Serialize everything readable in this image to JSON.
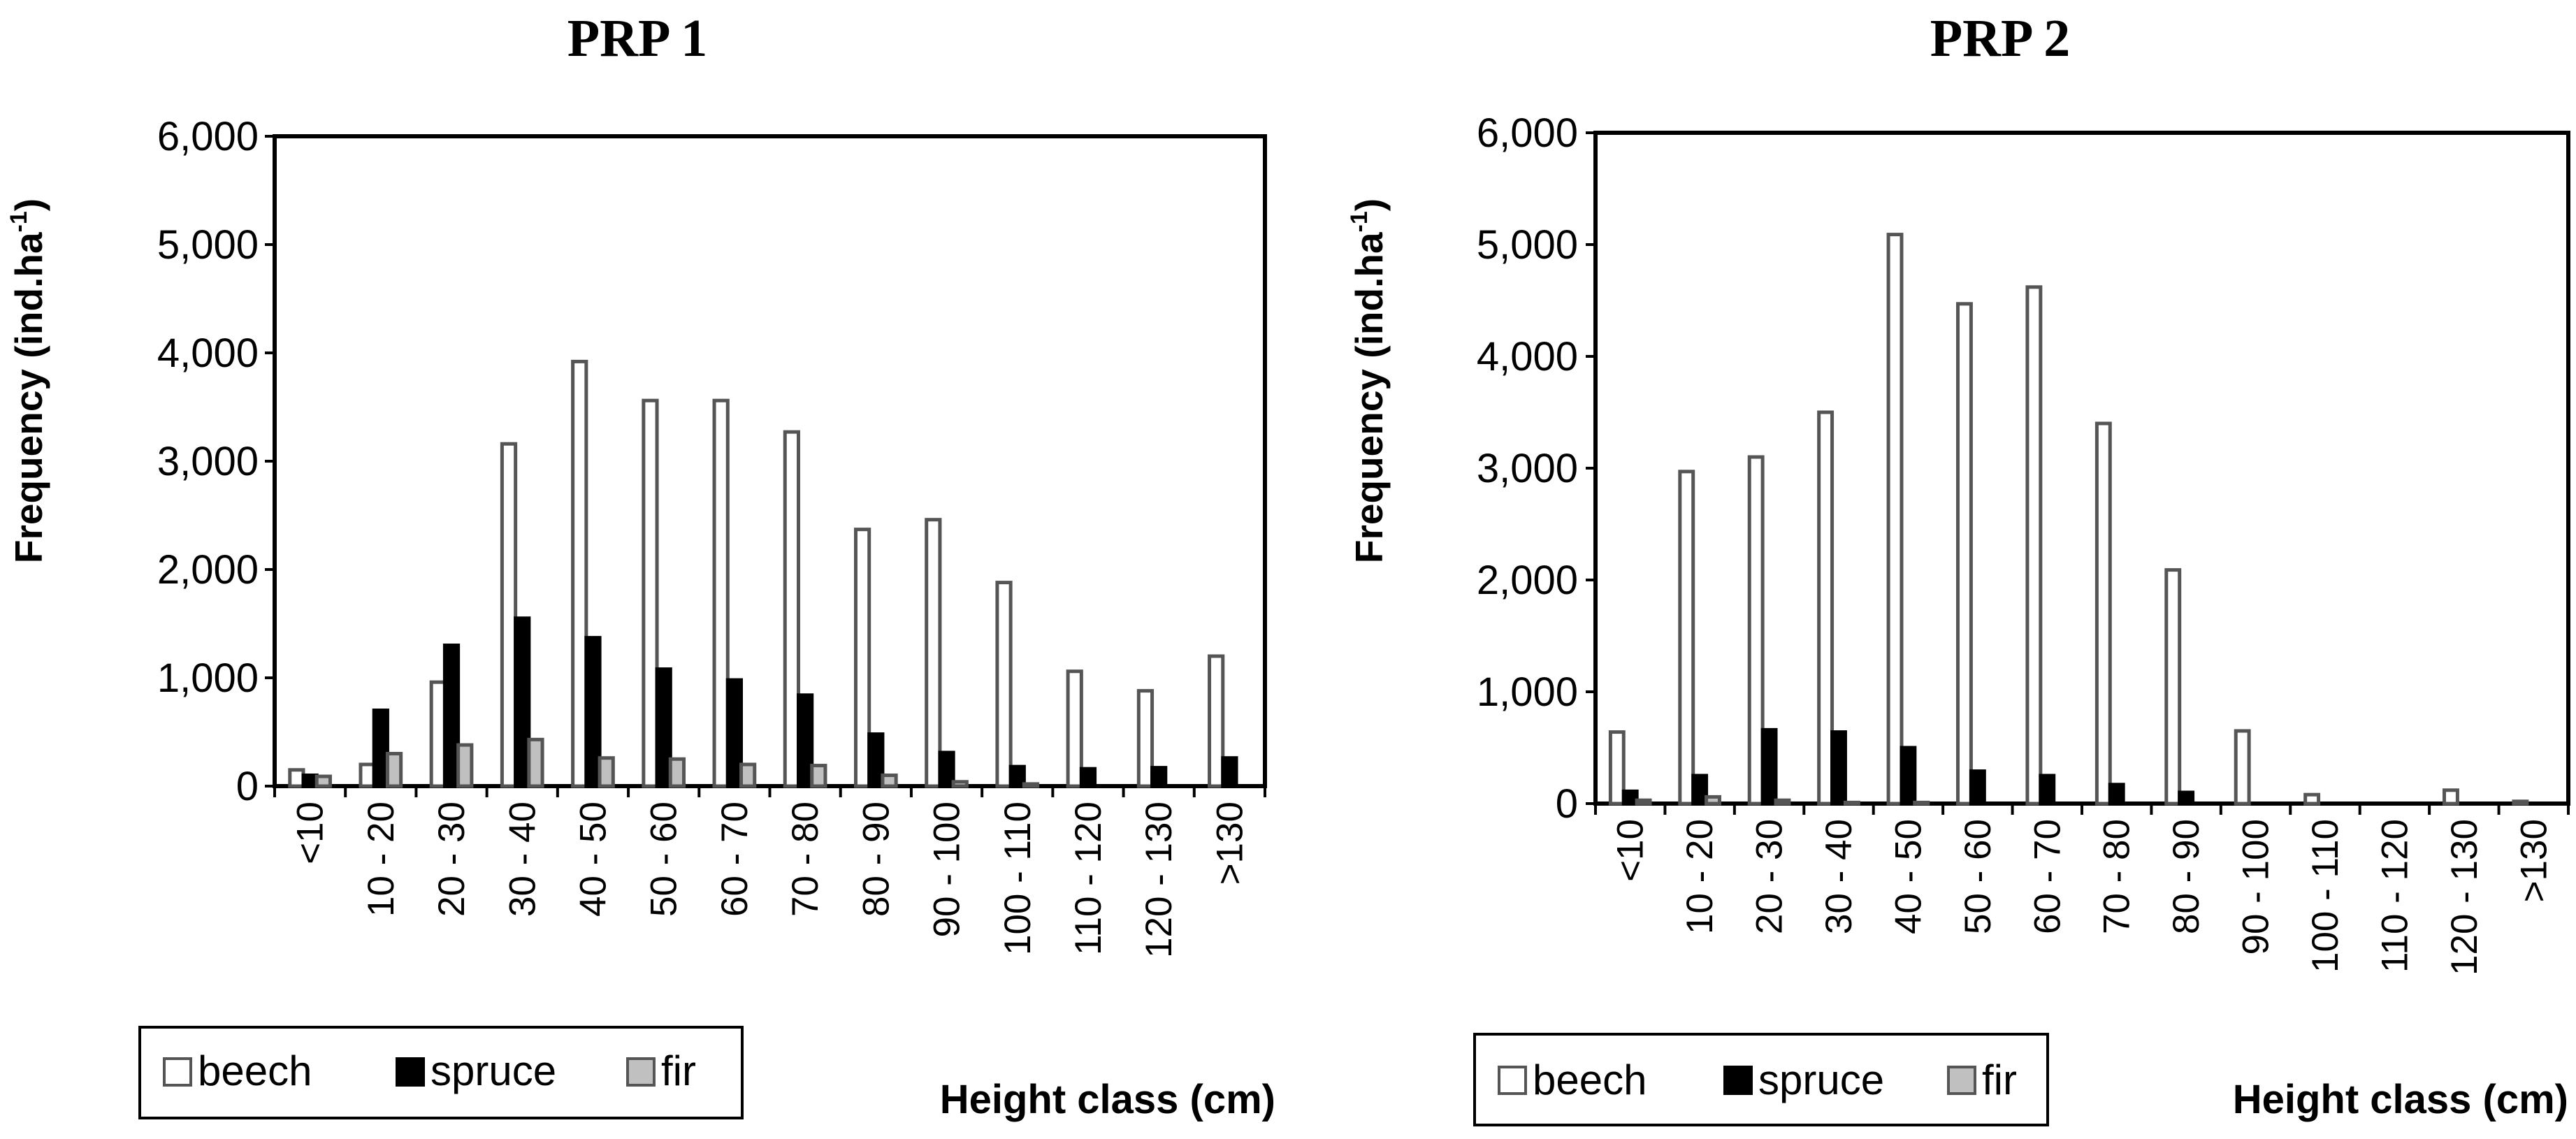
{
  "chart_data": [
    {
      "type": "bar",
      "title": "PRP 1",
      "xlabel": "Height class (cm)",
      "ylabel": "Frequency (ind.ha",
      "ylabel_superscript": "-1",
      "ylabel_close": ")",
      "ylim": [
        0,
        6000
      ],
      "yticks": [
        0,
        1000,
        2000,
        3000,
        4000,
        5000,
        6000
      ],
      "ytick_labels": [
        "0",
        "1,000",
        "2,000",
        "3,000",
        "4,000",
        "5,000",
        "6,000"
      ],
      "categories": [
        "<10",
        "10 - 20",
        "20 - 30",
        "30 - 40",
        "40 - 50",
        "50 - 60",
        "60 - 70",
        "70 - 80",
        "80 - 90",
        "90 - 100",
        "100 - 110",
        "110 - 120",
        "120 - 130",
        ">130"
      ],
      "series": [
        {
          "name": "beech",
          "color": "#ffffff",
          "stroke": "#555555",
          "values": [
            150,
            200,
            960,
            3160,
            3920,
            3560,
            3560,
            3270,
            2370,
            2460,
            1880,
            1060,
            880,
            1200
          ]
        },
        {
          "name": "spruce",
          "color": "#000000",
          "stroke": "#000000",
          "values": [
            100,
            700,
            1300,
            1550,
            1370,
            1080,
            980,
            840,
            480,
            310,
            180,
            160,
            170,
            260
          ]
        },
        {
          "name": "fir",
          "color": "#c0c0c0",
          "stroke": "#555555",
          "values": [
            90,
            300,
            380,
            430,
            260,
            250,
            200,
            190,
            100,
            40,
            20,
            0,
            0,
            0
          ]
        }
      ],
      "legend_position": "bottom-left"
    },
    {
      "type": "bar",
      "title": "PRP 2",
      "xlabel": "Height class (cm)",
      "ylabel": "Frequency (ind.ha",
      "ylabel_superscript": "-1",
      "ylabel_close": ")",
      "ylim": [
        0,
        6000
      ],
      "yticks": [
        0,
        1000,
        2000,
        3000,
        4000,
        5000,
        6000
      ],
      "ytick_labels": [
        "0",
        "1,000",
        "2,000",
        "3,000",
        "4,000",
        "5,000",
        "6,000"
      ],
      "categories": [
        "<10",
        "10 - 20",
        "20 - 30",
        "30 - 40",
        "40 - 50",
        "50 - 60",
        "60 - 70",
        "70 - 80",
        "80 - 90",
        "90 - 100",
        "100 - 110",
        "110 - 120",
        "120 - 130",
        ">130"
      ],
      "series": [
        {
          "name": "beech",
          "color": "#ffffff",
          "stroke": "#555555",
          "values": [
            640,
            2970,
            3100,
            3500,
            5090,
            4470,
            4620,
            3400,
            2090,
            650,
            80,
            0,
            120,
            20
          ]
        },
        {
          "name": "spruce",
          "color": "#000000",
          "stroke": "#000000",
          "values": [
            110,
            250,
            660,
            640,
            500,
            290,
            250,
            170,
            100,
            0,
            0,
            0,
            0,
            0
          ]
        },
        {
          "name": "fir",
          "color": "#c0c0c0",
          "stroke": "#555555",
          "values": [
            30,
            60,
            30,
            10,
            10,
            0,
            0,
            0,
            0,
            0,
            0,
            0,
            0,
            0
          ]
        }
      ],
      "legend_position": "bottom-left"
    }
  ]
}
